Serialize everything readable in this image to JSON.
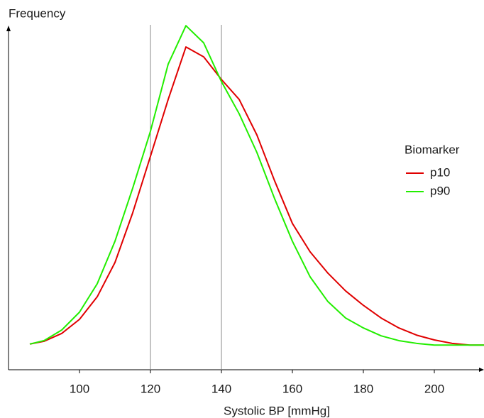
{
  "chart_data": {
    "type": "line",
    "x_label": "Systolic BP [mmHg]",
    "y_label": "Frequency",
    "x": [
      86,
      90,
      95,
      100,
      105,
      110,
      115,
      120,
      125,
      130,
      135,
      140,
      145,
      150,
      155,
      160,
      165,
      170,
      175,
      180,
      185,
      190,
      195,
      200,
      205,
      210,
      214
    ],
    "series": [
      {
        "name": "p10",
        "color": "#e00000",
        "values": [
          7.5,
          8.3,
          10.6,
          14.7,
          21.3,
          31.3,
          45.8,
          62.3,
          78.9,
          94.2,
          91.3,
          84.7,
          78.9,
          68.5,
          55.1,
          42.7,
          34.4,
          28.2,
          23.0,
          18.8,
          15.1,
          12.2,
          10.1,
          8.7,
          7.7,
          7.2,
          7.2
        ]
      },
      {
        "name": "p90",
        "color": "#22ee00",
        "values": [
          7.5,
          8.5,
          11.6,
          16.8,
          25.1,
          37.5,
          53.0,
          69.6,
          89.2,
          100.4,
          95.4,
          84.1,
          74.7,
          63.4,
          49.9,
          37.5,
          27.1,
          19.9,
          15.1,
          12.2,
          9.9,
          8.5,
          7.7,
          7.2,
          7.2,
          7.2,
          7.2
        ]
      }
    ],
    "legend_title": "Biomarker",
    "xlim": [
      80,
      214
    ],
    "xticks": [
      100,
      120,
      140,
      160,
      180,
      200
    ],
    "ylim": [
      0,
      105
    ],
    "vlines": [
      120,
      140
    ]
  }
}
